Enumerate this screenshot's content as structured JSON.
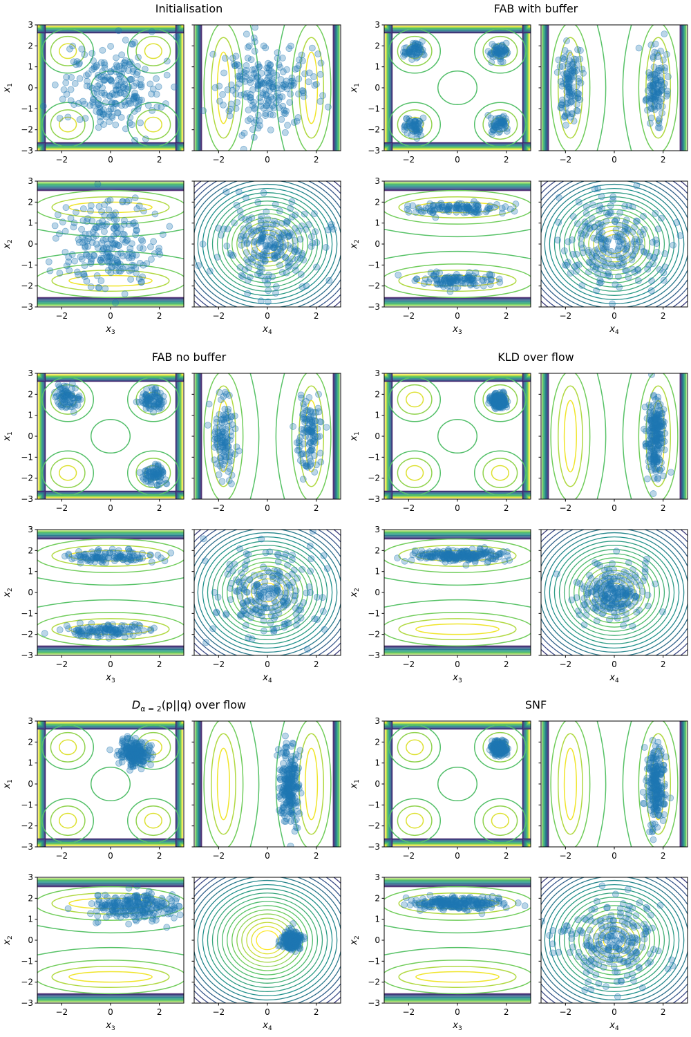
{
  "figure": {
    "colors": {
      "points": "#1f77b4",
      "contour_low": "#440154",
      "contour_mid": "#21918c",
      "contour_high": "#fde725",
      "axis": "#000000"
    }
  },
  "chart_data": [
    {
      "type": "scatter",
      "title": "Initialisation",
      "title_parts": [],
      "xlim": [
        -3,
        3
      ],
      "ylim": [
        -3,
        3
      ],
      "xticks": [
        -2,
        0,
        2
      ],
      "yticks": [
        -3,
        -2,
        -1,
        0,
        1,
        2,
        3
      ],
      "xlabels": [
        "x3",
        "x4"
      ],
      "ylabels": [
        "x1",
        "x2"
      ],
      "subplots": [
        {
          "kind": "x1x3",
          "xlabel": "",
          "ylabel": "x1",
          "cluster_centers": [
            [
              0,
              0
            ]
          ],
          "spread": 1.0
        },
        {
          "kind": "x1x4",
          "xlabel": "",
          "ylabel": "",
          "cluster_centers": [
            [
              0,
              0
            ]
          ],
          "spread": 1.0
        },
        {
          "kind": "x2x3",
          "xlabel": "x3",
          "ylabel": "x2",
          "cluster_centers": [
            [
              0,
              0
            ]
          ],
          "spread": 1.0
        },
        {
          "kind": "x2x4",
          "xlabel": "x4",
          "ylabel": "",
          "cluster_centers": [
            [
              0,
              0
            ]
          ],
          "spread": 1.0
        }
      ]
    },
    {
      "type": "scatter",
      "title": "FAB with buffer",
      "title_parts": [],
      "xlim": [
        -3,
        3
      ],
      "ylim": [
        -3,
        3
      ],
      "xticks": [
        -2,
        0,
        2
      ],
      "yticks": [
        -3,
        -2,
        -1,
        0,
        1,
        2,
        3
      ],
      "subplots": [
        {
          "kind": "x1x3",
          "xlabel": "",
          "ylabel": "x1",
          "cluster_centers": [
            [
              1.7,
              1.7
            ],
            [
              -1.8,
              1.8
            ],
            [
              1.7,
              -1.7
            ],
            [
              -1.8,
              -1.8
            ]
          ],
          "spread": 0.2
        },
        {
          "kind": "x1x4",
          "xlabel": "",
          "ylabel": "",
          "cluster_centers": [
            [
              1.7,
              0
            ],
            [
              -1.8,
              0
            ]
          ],
          "spread": 0.2
        },
        {
          "kind": "x2x3",
          "xlabel": "x3",
          "ylabel": "x2",
          "cluster_centers": [
            [
              0,
              1.7
            ],
            [
              0,
              -1.7
            ]
          ],
          "spread": 0.15
        },
        {
          "kind": "x2x4",
          "xlabel": "x4",
          "ylabel": "",
          "cluster_centers": [
            [
              0,
              0
            ]
          ],
          "spread": 1.0
        }
      ]
    },
    {
      "type": "scatter",
      "title": "FAB no buffer",
      "title_parts": [],
      "xlim": [
        -3,
        3
      ],
      "ylim": [
        -3,
        3
      ],
      "xticks": [
        -2,
        0,
        2
      ],
      "yticks": [
        -3,
        -2,
        -1,
        0,
        1,
        2,
        3
      ],
      "subplots": [
        {
          "kind": "x1x3",
          "xlabel": "",
          "ylabel": "x1",
          "cluster_centers": [
            [
              1.7,
              1.7
            ],
            [
              -1.8,
              1.8
            ],
            [
              1.8,
              -1.8
            ]
          ],
          "spread": 0.25
        },
        {
          "kind": "x1x4",
          "xlabel": "",
          "ylabel": "",
          "cluster_centers": [
            [
              1.7,
              0
            ],
            [
              -1.8,
              0
            ]
          ],
          "spread": 0.25
        },
        {
          "kind": "x2x3",
          "xlabel": "x3",
          "ylabel": "x2",
          "cluster_centers": [
            [
              0,
              1.7
            ],
            [
              0,
              -1.8
            ]
          ],
          "spread": 0.15
        },
        {
          "kind": "x2x4",
          "xlabel": "x4",
          "ylabel": "",
          "cluster_centers": [
            [
              0,
              0
            ]
          ],
          "spread": 1.0
        }
      ]
    },
    {
      "type": "scatter",
      "title": "KLD over flow",
      "title_parts": [],
      "xlim": [
        -3,
        3
      ],
      "ylim": [
        -3,
        3
      ],
      "xticks": [
        -2,
        0,
        2
      ],
      "yticks": [
        -3,
        -2,
        -1,
        0,
        1,
        2,
        3
      ],
      "subplots": [
        {
          "kind": "x1x3",
          "xlabel": "",
          "ylabel": "x1",
          "cluster_centers": [
            [
              1.7,
              1.7
            ]
          ],
          "spread": 0.15
        },
        {
          "kind": "x1x4",
          "xlabel": "",
          "ylabel": "",
          "cluster_centers": [
            [
              1.7,
              0
            ]
          ],
          "spread": 0.2
        },
        {
          "kind": "x2x3",
          "xlabel": "x3",
          "ylabel": "x2",
          "cluster_centers": [
            [
              0,
              1.75
            ]
          ],
          "spread": 0.15
        },
        {
          "kind": "x2x4",
          "xlabel": "x4",
          "ylabel": "",
          "cluster_centers": [
            [
              0,
              0
            ]
          ],
          "spread": 0.7
        }
      ]
    },
    {
      "type": "scatter",
      "title": "",
      "title_parts": [
        "D",
        "α = 2",
        "(p||q) over flow"
      ],
      "xlim": [
        -3,
        3
      ],
      "ylim": [
        -3,
        3
      ],
      "xticks": [
        -2,
        0,
        2
      ],
      "yticks": [
        -3,
        -2,
        -1,
        0,
        1,
        2,
        3
      ],
      "subplots": [
        {
          "kind": "x1x3",
          "xlabel": "",
          "ylabel": "x1",
          "cluster_centers": [
            [
              1.0,
              1.5
            ]
          ],
          "spread": 0.3
        },
        {
          "kind": "x1x4",
          "xlabel": "",
          "ylabel": "",
          "cluster_centers": [
            [
              0.9,
              -0.1
            ]
          ],
          "spread": 0.2
        },
        {
          "kind": "x2x3",
          "xlabel": "x3",
          "ylabel": "x2",
          "cluster_centers": [
            [
              1.1,
              1.6
            ]
          ],
          "spread": 0.3
        },
        {
          "kind": "x2x4",
          "xlabel": "x4",
          "ylabel": "",
          "cluster_centers": [
            [
              1.0,
              0.0
            ]
          ],
          "spread": 0.2
        }
      ]
    },
    {
      "type": "scatter",
      "title": "SNF",
      "title_parts": [],
      "xlim": [
        -3,
        3
      ],
      "ylim": [
        -3,
        3
      ],
      "xticks": [
        -2,
        0,
        2
      ],
      "yticks": [
        -3,
        -2,
        -1,
        0,
        1,
        2,
        3
      ],
      "subplots": [
        {
          "kind": "x1x3",
          "xlabel": "",
          "ylabel": "x1",
          "cluster_centers": [
            [
              1.7,
              1.7
            ]
          ],
          "spread": 0.15
        },
        {
          "kind": "x1x4",
          "xlabel": "",
          "ylabel": "",
          "cluster_centers": [
            [
              1.7,
              0
            ]
          ],
          "spread": 0.2
        },
        {
          "kind": "x2x3",
          "xlabel": "x3",
          "ylabel": "x2",
          "cluster_centers": [
            [
              0,
              1.75
            ]
          ],
          "spread": 0.15
        },
        {
          "kind": "x2x4",
          "xlabel": "x4",
          "ylabel": "",
          "cluster_centers": [
            [
              0,
              0
            ]
          ],
          "spread": 1.0
        }
      ]
    }
  ]
}
